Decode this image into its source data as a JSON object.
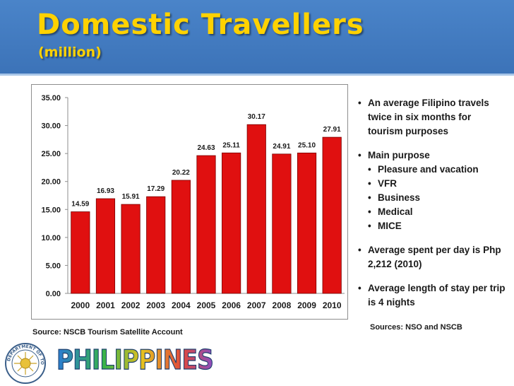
{
  "slide": {
    "title": "Domestic Travellers",
    "subtitle": "(million)"
  },
  "colors": {
    "header_bg": "#4a84c9",
    "title_color": "#ffd200",
    "bar_color": "#e01010"
  },
  "chart_data": {
    "type": "bar",
    "categories": [
      "2000",
      "2001",
      "2002",
      "2003",
      "2004",
      "2005",
      "2006",
      "2007",
      "2008",
      "2009",
      "2010"
    ],
    "values": [
      14.59,
      16.93,
      15.91,
      17.29,
      20.22,
      24.63,
      25.11,
      30.17,
      24.91,
      25.1,
      27.91
    ],
    "value_labels": [
      "14.59",
      "16.93",
      "15.91",
      "17.29",
      "20.22",
      "24.63",
      "25.11",
      "30.17",
      "24.91",
      "25.10",
      "27.91"
    ],
    "y_ticks": [
      "0.00",
      "5.00",
      "10.00",
      "15.00",
      "20.00",
      "25.00",
      "30.00",
      "35.00"
    ],
    "ylim": [
      0,
      35
    ],
    "grid": false,
    "legend": "none"
  },
  "bullets": {
    "item1": "An average Filipino travels twice in six months for tourism purposes",
    "item2": "Main purpose",
    "sub_items": [
      "Pleasure and vacation",
      "VFR",
      "Business",
      "Medical",
      "MICE"
    ],
    "item3": "Average spent per day is Php 2,212 (2010)",
    "item4": "Average length of stay per trip is 4 nights"
  },
  "sources": {
    "right": "Sources:  NSO and NSCB",
    "left": "Source:  NSCB Tourism Satellite Account"
  },
  "logos": {
    "seal_icon": "department-of-tourism-seal",
    "logo_icon": "philippines-wordmark",
    "seal_text": "DEPARTMENT OF TOURISM PHILIPPINES",
    "wordmark_text": "PHILIPPINES"
  }
}
